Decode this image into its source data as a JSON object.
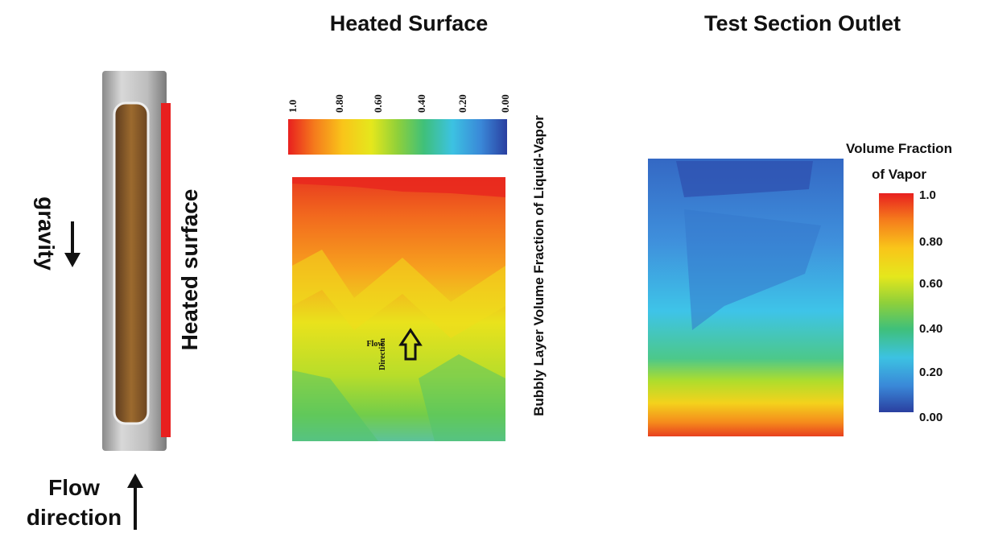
{
  "photo": {
    "gravity_label": "gravity",
    "heated_surface_label": "Heated surface",
    "flow_label": [
      "Flow",
      "direction"
    ]
  },
  "heated_surface": {
    "title": "Heated Surface",
    "colorbar_ticks": [
      "1.0",
      "0.80",
      "0.60",
      "0.40",
      "0.20",
      "0.00"
    ],
    "colorbar_label": "Bubbly Layer Volume Fraction of Liquid-Vapor",
    "flow_annotation": [
      "Flow",
      "Direction"
    ]
  },
  "outlet": {
    "title": "Test Section Outlet",
    "colorbar_title": [
      "Volume Fraction",
      "of Vapor"
    ],
    "colorbar_ticks": [
      "1.0",
      "0.80",
      "0.60",
      "0.40",
      "0.20",
      "0.00"
    ]
  }
}
